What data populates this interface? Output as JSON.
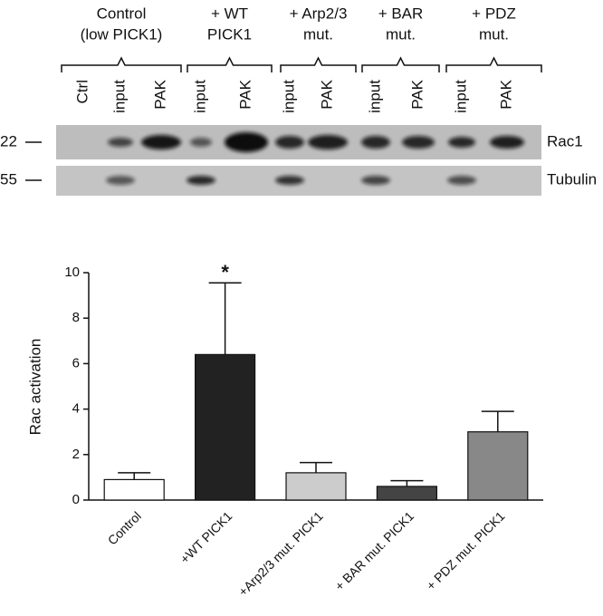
{
  "blot": {
    "groups": [
      [
        "Control",
        "(low PICK1)"
      ],
      [
        "+ WT",
        "PICK1"
      ],
      [
        "+ Arp2/3",
        "mut."
      ],
      [
        "+ BAR",
        "mut."
      ],
      [
        "+ PDZ",
        "mut."
      ]
    ],
    "lanes": [
      "Ctrl",
      "input",
      "PAK",
      "input",
      "PAK",
      "input",
      "PAK",
      "input",
      "PAK",
      "input",
      "PAK"
    ],
    "size_markers": [
      "22",
      "55"
    ],
    "proteins": [
      "Rac1",
      "Tubulin"
    ]
  },
  "chart_data": {
    "type": "bar",
    "y_label": "Rac activation",
    "categories": [
      "Control",
      "+WT PICK1",
      "+Arp2/3 mut. PICK1",
      "+ BAR mut. PICK1",
      "+ PDZ mut. PICK1"
    ],
    "values": [
      0.9,
      6.4,
      1.2,
      0.6,
      3.0
    ],
    "errors": [
      0.3,
      3.15,
      0.45,
      0.25,
      0.9
    ],
    "colors": [
      "#ffffff",
      "#222222",
      "#cccccc",
      "#444444",
      "#888888"
    ],
    "markers": [
      null,
      "*",
      null,
      null,
      null
    ],
    "ylim": [
      0,
      10
    ],
    "yticks": [
      0,
      2,
      4,
      6,
      8,
      10
    ]
  }
}
